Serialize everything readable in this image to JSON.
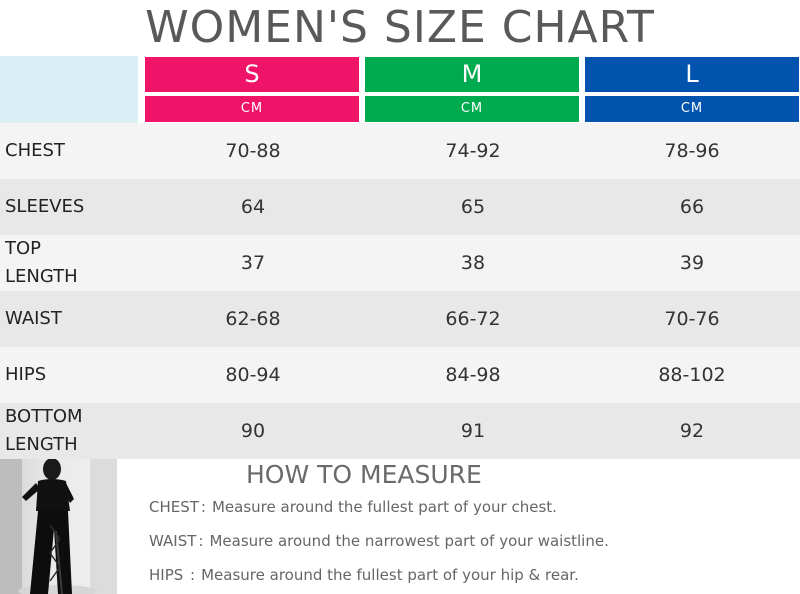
{
  "title": "WOMEN'S SIZE CHART",
  "colors": {
    "s": "#ef1467",
    "m": "#00ab4f",
    "l": "#0153ae",
    "corner": "#daeef6",
    "row_light": "#f4f4f4",
    "row_dark": "#e8e8e8"
  },
  "sizes": [
    {
      "label": "S",
      "unit": "CM"
    },
    {
      "label": "M",
      "unit": "CM"
    },
    {
      "label": "L",
      "unit": "CM"
    }
  ],
  "rows": [
    {
      "label": "CHEST",
      "values": [
        "70-88",
        "74-92",
        "78-96"
      ]
    },
    {
      "label": "SLEEVES",
      "values": [
        "64",
        "65",
        "66"
      ]
    },
    {
      "label": "TOP\nLENGTH",
      "values": [
        "37",
        "38",
        "39"
      ]
    },
    {
      "label": "WAIST",
      "values": [
        "62-68",
        "66-72",
        "70-76"
      ]
    },
    {
      "label": "HIPS",
      "values": [
        "80-94",
        "84-98",
        "88-102"
      ]
    },
    {
      "label": "BOTTOM\nLENGTH",
      "values": [
        "90",
        "91",
        "92"
      ]
    }
  ],
  "measure": {
    "title": "HOW TO MEASURE",
    "items": [
      {
        "key": "CHEST",
        "sep": ":",
        "text": "Measure around the fullest part of your chest."
      },
      {
        "key": "WAIST",
        "sep": ":",
        "text": "Measure around the narrowest part of your waistline."
      },
      {
        "key": "HIPS",
        "sep": " :",
        "text": "Measure around the fullest part of your hip & rear."
      }
    ]
  }
}
